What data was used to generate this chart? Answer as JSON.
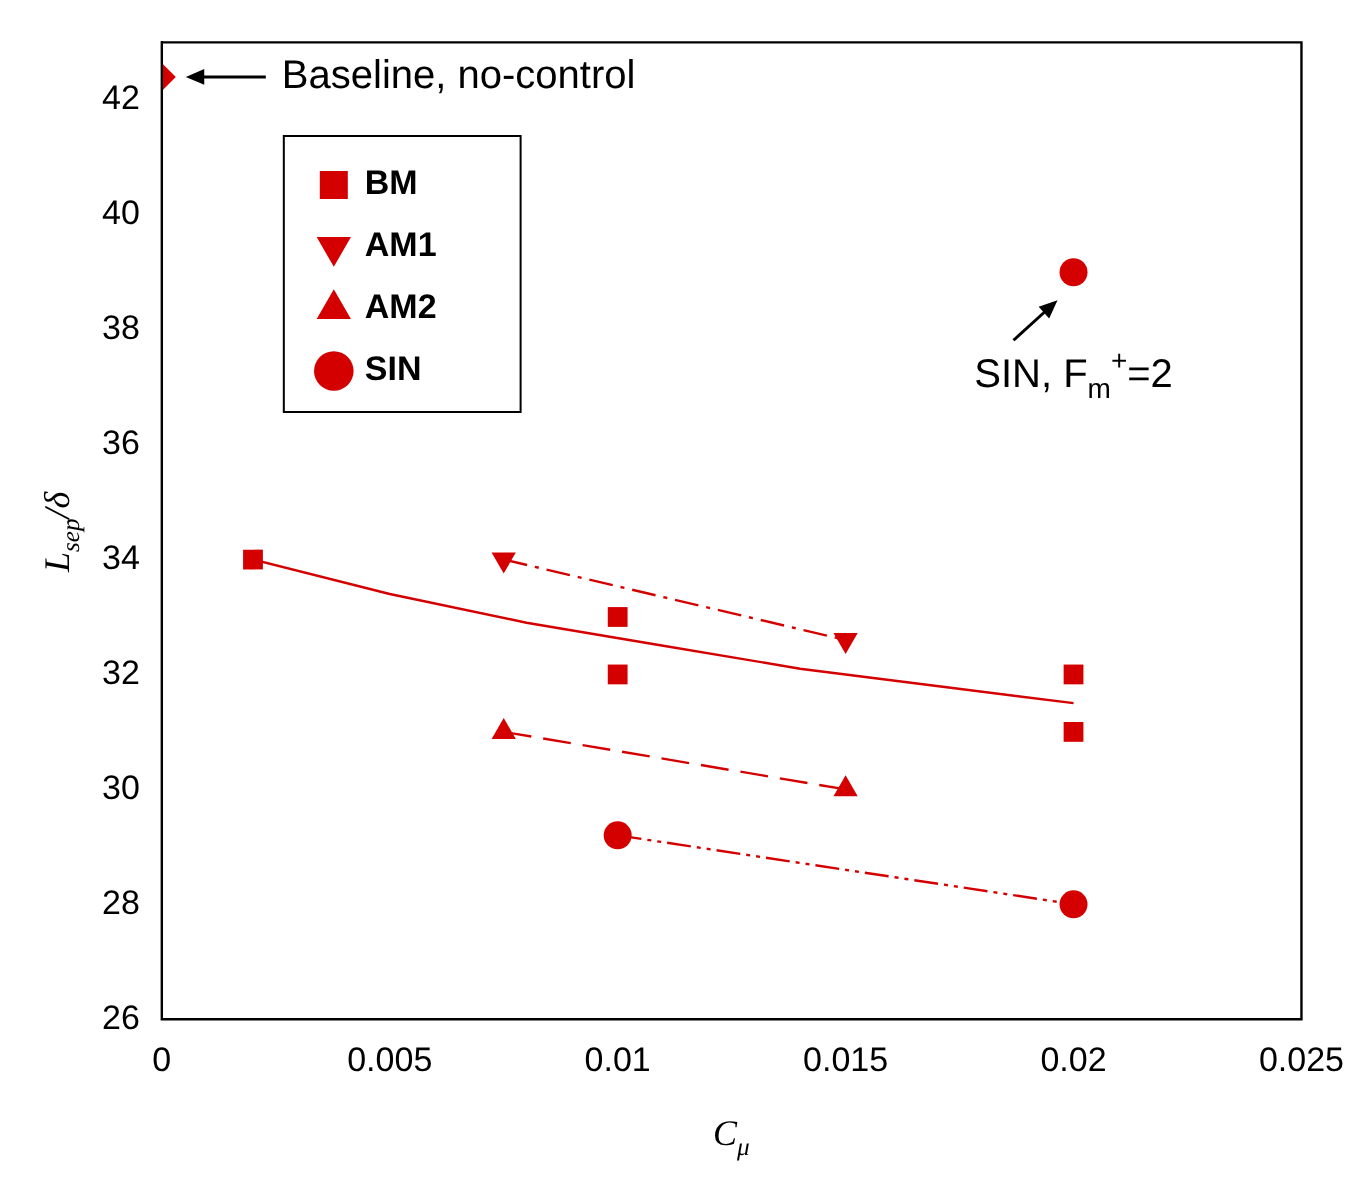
{
  "chart_data": {
    "type": "line",
    "xlabel": "C$_{μ}$",
    "ylabel": "L$_{sep}$/δ",
    "xlim": [
      0,
      0.025
    ],
    "xticks": [
      0,
      0.005,
      0.01,
      0.015,
      0.02,
      0.025
    ],
    "ylim": [
      26,
      43
    ],
    "yticks": [
      26,
      28,
      30,
      32,
      34,
      36,
      38,
      40,
      42
    ],
    "grid": false,
    "legend": "top left",
    "series": [
      {
        "name": "BM",
        "type": "scatter",
        "marker": "square",
        "line_style": "solid",
        "color": "#d40000",
        "x": [
          0.002,
          0.01,
          0.01,
          0.02,
          0.02
        ],
        "values": [
          34,
          33,
          32,
          32,
          31
        ]
      },
      {
        "marker": "none",
        "line_style": "solid",
        "color": "#d40000",
        "x": [
          0.002,
          0.005,
          0.008,
          0.011,
          0.014,
          0.017,
          0.02
        ],
        "values": [
          34,
          33.4,
          32.9,
          32.5,
          32.1,
          31.8,
          31.5
        ]
      },
      {
        "name": "AM1",
        "marker": "triangle_down",
        "line_style": "dashdot",
        "color": "#d40000",
        "x": [
          0.0075,
          0.015
        ],
        "values": [
          34,
          32.6
        ]
      },
      {
        "name": "AM2",
        "marker": "triangle",
        "line_style": "dashed",
        "color": "#d40000",
        "x": [
          0.0075,
          0.015
        ],
        "values": [
          31,
          30
        ]
      },
      {
        "name": "SIN",
        "marker": "circle",
        "line_style": "dashdotdot",
        "color": "#d40000",
        "x": [
          0.01,
          0.02
        ],
        "values": [
          29.2,
          28
        ]
      },
      {
        "type": "scatter",
        "marker": "circle",
        "color": "#d40000",
        "x": [
          0.02
        ],
        "values": [
          39
        ]
      },
      {
        "type": "scatter",
        "marker": "diamond",
        "color": "#d40000",
        "x": [
          0
        ],
        "values": [
          42.4
        ]
      }
    ],
    "annotations": [
      {
        "text": "Baseline, no-control",
        "x": 0,
        "y": 42.4
      },
      {
        "text": "SIN, F$_{m}$$^{+}$=2",
        "x": 0.02,
        "y": 39
      }
    ]
  }
}
